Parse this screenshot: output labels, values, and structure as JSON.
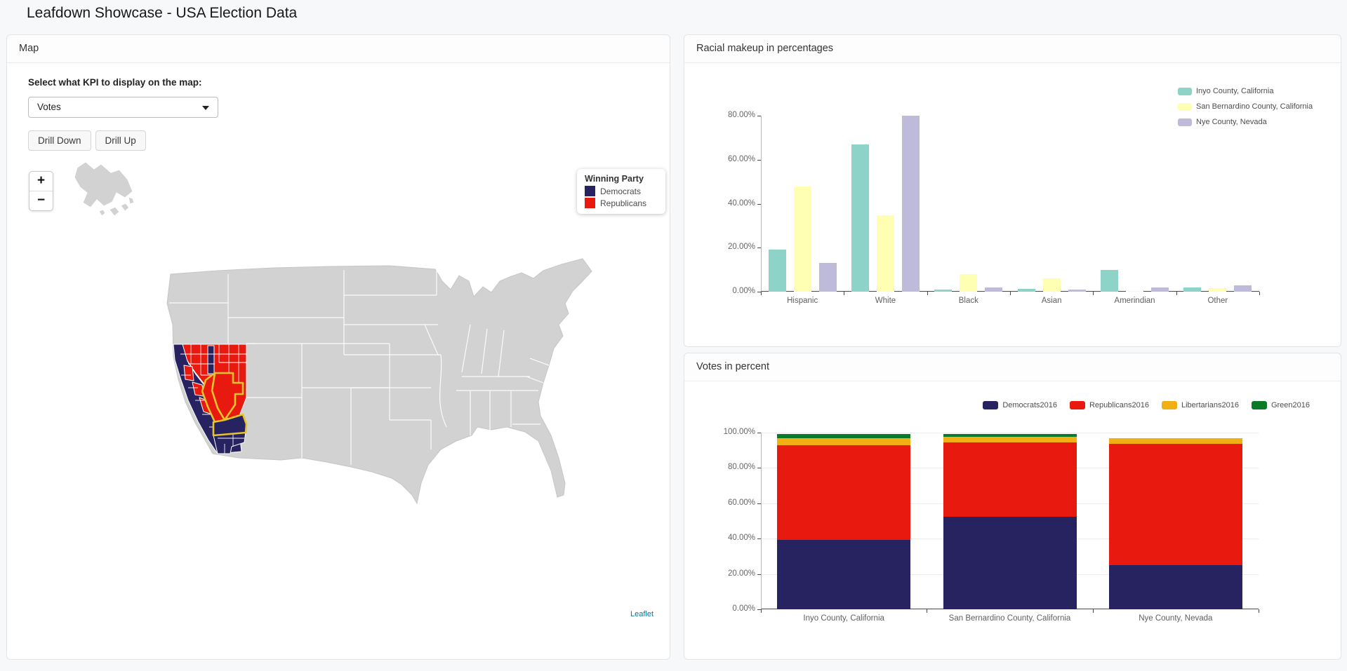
{
  "app": {
    "title": "Leafdown Showcase - USA Election Data"
  },
  "map_panel": {
    "title": "Map",
    "kpi_label": "Select what KPI to display on the map:",
    "kpi_selected": "Votes",
    "drill_down_label": "Drill Down",
    "drill_up_label": "Drill Up",
    "zoom_in_label": "+",
    "zoom_out_label": "−",
    "attribution": "Leaflet",
    "legend": {
      "title": "Winning Party",
      "items": [
        {
          "label": "Democrats",
          "color": "#272361"
        },
        {
          "label": "Republicans",
          "color": "#e8190f"
        }
      ]
    },
    "colors": {
      "state_fill": "#d2d2d2",
      "state_border": "#ffffff",
      "selected_county_outline": "#e7c428",
      "democrat_fill": "#272361",
      "republican_fill": "#e8190f"
    },
    "selected_counties": [
      "Inyo County, California",
      "San Bernardino County, California",
      "Nye County, Nevada"
    ]
  },
  "chart_data": [
    {
      "type": "bar",
      "panel_title": "Racial makeup in percentages",
      "categories": [
        "Hispanic",
        "White",
        "Black",
        "Asian",
        "Amerindian",
        "Other"
      ],
      "series": [
        {
          "name": "Inyo County, California",
          "color": "#8dd3c7",
          "values": [
            19.2,
            66.9,
            0.8,
            1.4,
            9.9,
            1.9
          ]
        },
        {
          "name": "San Bernardino County, California",
          "color": "#ffffb3",
          "values": [
            47.9,
            34.9,
            8.0,
            6.0,
            0.3,
            1.6
          ]
        },
        {
          "name": "Nye County, Nevada",
          "color": "#bebada",
          "values": [
            13.0,
            79.9,
            2.0,
            1.0,
            2.0,
            3.0
          ]
        }
      ],
      "ylabel": "",
      "xlabel": "",
      "ylim": [
        0,
        80
      ],
      "ytick_step": 20,
      "ytick_format": "percent2",
      "grid": false,
      "legend_position": "top-right"
    },
    {
      "type": "stacked-bar",
      "panel_title": "Votes in percent",
      "categories": [
        "Inyo County, California",
        "San Bernardino County, California",
        "Nye County, Nevada"
      ],
      "series": [
        {
          "name": "Democrats2016",
          "color": "#272361",
          "values": [
            39.4,
            52.2,
            25.0
          ]
        },
        {
          "name": "Republicans2016",
          "color": "#e8190f",
          "values": [
            53.4,
            42.4,
            68.5
          ]
        },
        {
          "name": "Libertarians2016",
          "color": "#f2af13",
          "values": [
            4.1,
            3.2,
            3.3
          ]
        },
        {
          "name": "Green2016",
          "color": "#0b7a29",
          "values": [
            2.5,
            1.5,
            0.0
          ]
        }
      ],
      "ylabel": "",
      "xlabel": "",
      "ylim": [
        0,
        100
      ],
      "ytick_step": 20,
      "ytick_format": "percent2",
      "grid": true,
      "legend_position": "top-right-row"
    }
  ]
}
